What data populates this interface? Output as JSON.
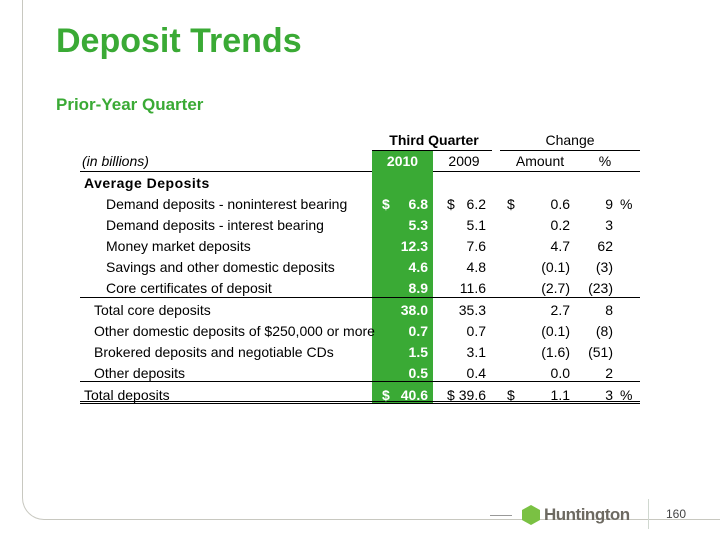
{
  "title": "Deposit Trends",
  "subtitle": "Prior-Year Quarter",
  "header": {
    "group1": "Third Quarter",
    "group2": "Change",
    "units": "(in billions)",
    "col2010": "2010",
    "col2009": "2009",
    "amount": "Amount",
    "pct": "%"
  },
  "section": "Average Deposits",
  "rows": [
    {
      "label": "Demand deposits - noninterest bearing",
      "d1": "$",
      "v2010": "6.8",
      "d2": "$",
      "v2009": "6.2",
      "d3": "$",
      "amt": "0.6",
      "pct": "9",
      "ps": "%"
    },
    {
      "label": "Demand deposits - interest bearing",
      "v2010": "5.3",
      "v2009": "5.1",
      "amt": "0.2",
      "pct": "3"
    },
    {
      "label": "Money market deposits",
      "v2010": "12.3",
      "v2009": "7.6",
      "amt": "4.7",
      "pct": "62"
    },
    {
      "label": "Savings and other domestic deposits",
      "v2010": "4.6",
      "v2009": "4.8",
      "amt": "(0.1)",
      "pct": "(3)"
    },
    {
      "label": "Core certificates of deposit",
      "v2010": "8.9",
      "v2009": "11.6",
      "amt": "(2.7)",
      "pct": "(23)"
    },
    {
      "label": "Total core deposits",
      "v2010": "38.0",
      "v2009": "35.3",
      "amt": "2.7",
      "pct": "8"
    },
    {
      "label": "Other domestic deposits of $250,000 or more",
      "v2010": "0.7",
      "v2009": "0.7",
      "amt": "(0.1)",
      "pct": "(8)"
    },
    {
      "label": "Brokered deposits and negotiable CDs",
      "v2010": "1.5",
      "v2009": "3.1",
      "amt": "(1.6)",
      "pct": "(51)"
    },
    {
      "label": "Other deposits",
      "v2010": "0.5",
      "v2009": "0.4",
      "amt": "0.0",
      "pct": "2"
    },
    {
      "label": "Total deposits",
      "d1": "$",
      "v2010": "40.6",
      "d2": "$",
      "v2009": "39.6",
      "d3": "$",
      "amt": "1.1",
      "pct": "3",
      "ps": "%"
    }
  ],
  "footer": {
    "brand": "Huntington",
    "page": "160"
  },
  "colors": {
    "accent": "#3aaa35"
  }
}
